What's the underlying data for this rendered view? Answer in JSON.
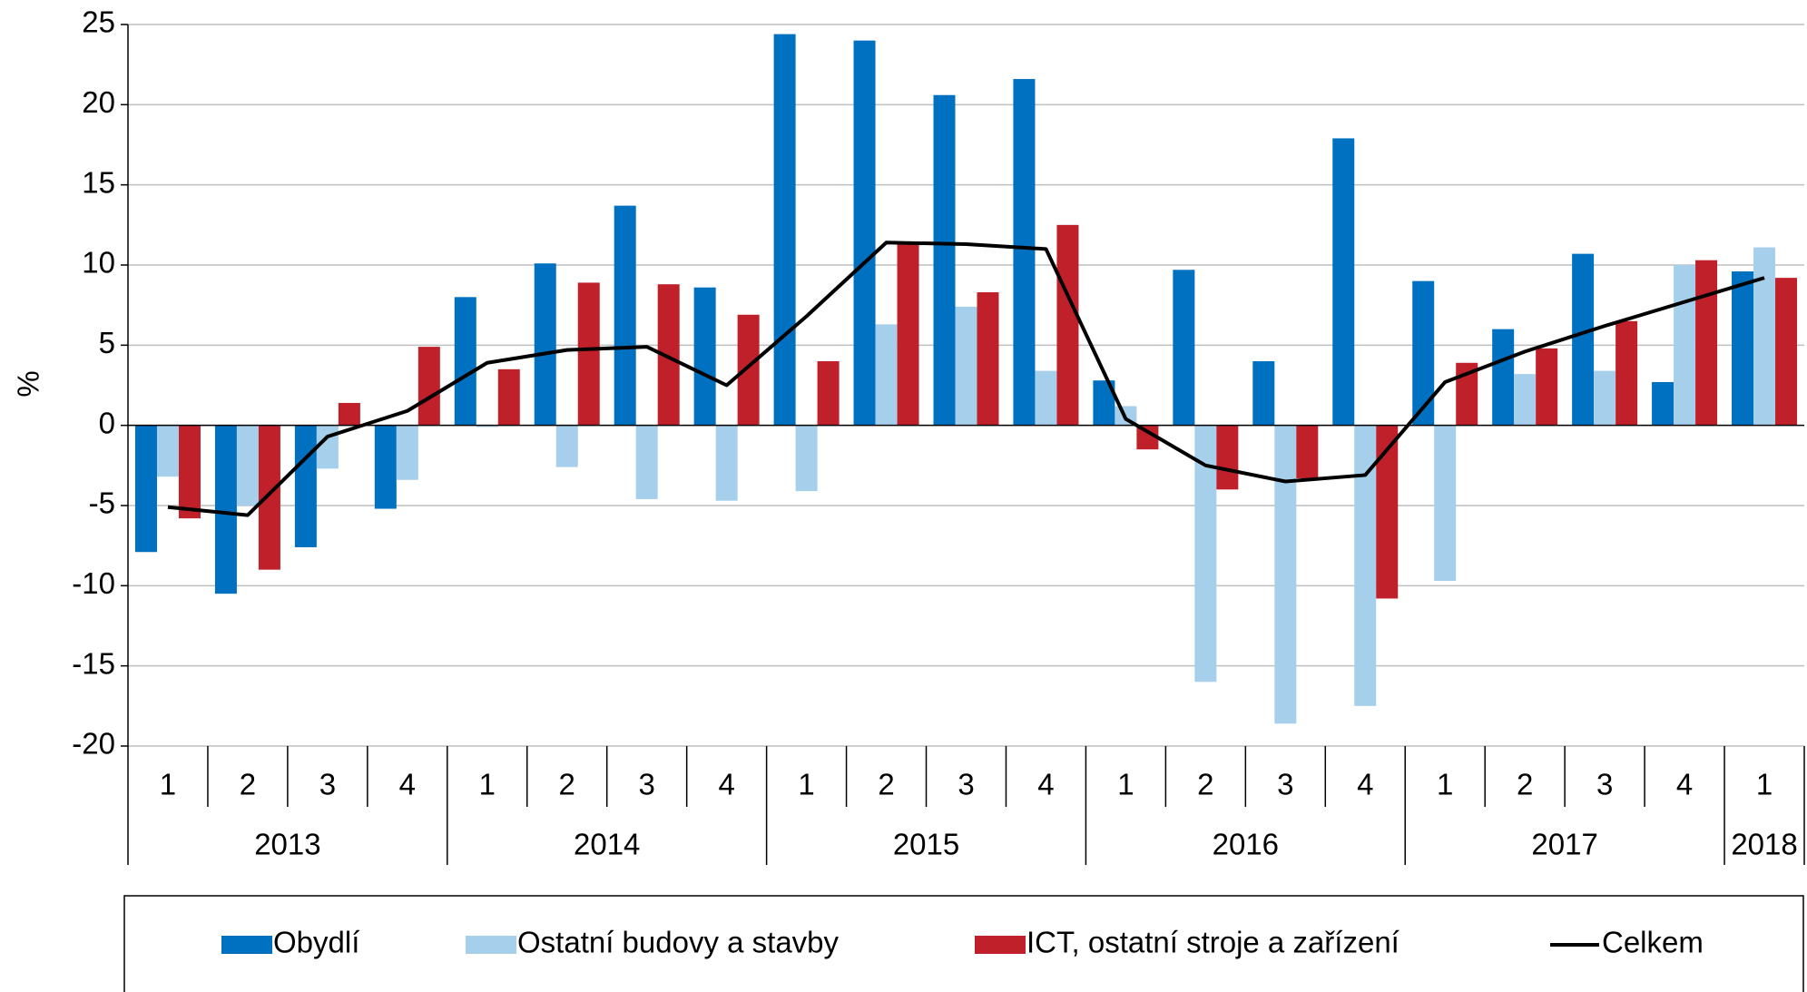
{
  "chart_data": {
    "type": "bar",
    "ylabel": "%",
    "categories": [
      "1",
      "2",
      "3",
      "4",
      "1",
      "2",
      "3",
      "4",
      "1",
      "2",
      "3",
      "4",
      "1",
      "2",
      "3",
      "4",
      "1",
      "2",
      "3",
      "4",
      "1"
    ],
    "years": [
      "2013",
      "2014",
      "2015",
      "2016",
      "2017",
      "2018"
    ],
    "ylim": [
      -20,
      25
    ],
    "yticks": [
      -20,
      -15,
      -10,
      -5,
      0,
      5,
      10,
      15,
      20,
      25
    ],
    "grid": true,
    "legend": "bottom",
    "series": [
      {
        "name": "Obydlí",
        "color": "#0070c0",
        "values": [
          -7.9,
          -10.5,
          -7.6,
          -5.2,
          8.0,
          10.1,
          13.7,
          8.6,
          24.4,
          24.0,
          20.6,
          21.6,
          2.8,
          9.7,
          4.0,
          17.9,
          9.0,
          6.0,
          10.7,
          2.7,
          9.6
        ]
      },
      {
        "name": "Ostatní budovy a stavby",
        "color": "#a6cfeb",
        "values": [
          -3.2,
          -5.0,
          -2.7,
          -3.4,
          -0.1,
          -2.6,
          -4.6,
          -4.7,
          -4.1,
          6.3,
          7.4,
          3.4,
          1.2,
          -16.0,
          -18.6,
          -17.5,
          -9.7,
          3.2,
          3.4,
          10.0,
          11.1
        ]
      },
      {
        "name": "ICT, ostatní stroje a zařízení",
        "color": "#c0202a",
        "values": [
          -5.8,
          -9.0,
          1.4,
          4.9,
          3.5,
          8.9,
          8.8,
          6.9,
          4.0,
          11.4,
          8.3,
          12.5,
          -1.5,
          -4.0,
          -3.3,
          -10.8,
          3.9,
          4.8,
          6.5,
          10.3,
          9.2
        ]
      },
      {
        "name": "Celkem",
        "color": "#000000",
        "type": "line",
        "values": [
          -5.1,
          -5.6,
          -0.7,
          0.9,
          3.9,
          4.7,
          4.9,
          2.5,
          6.8,
          11.4,
          11.3,
          11.0,
          0.4,
          -2.5,
          -3.5,
          -3.1,
          2.7,
          4.6,
          6.2,
          7.7,
          9.2
        ]
      }
    ]
  }
}
